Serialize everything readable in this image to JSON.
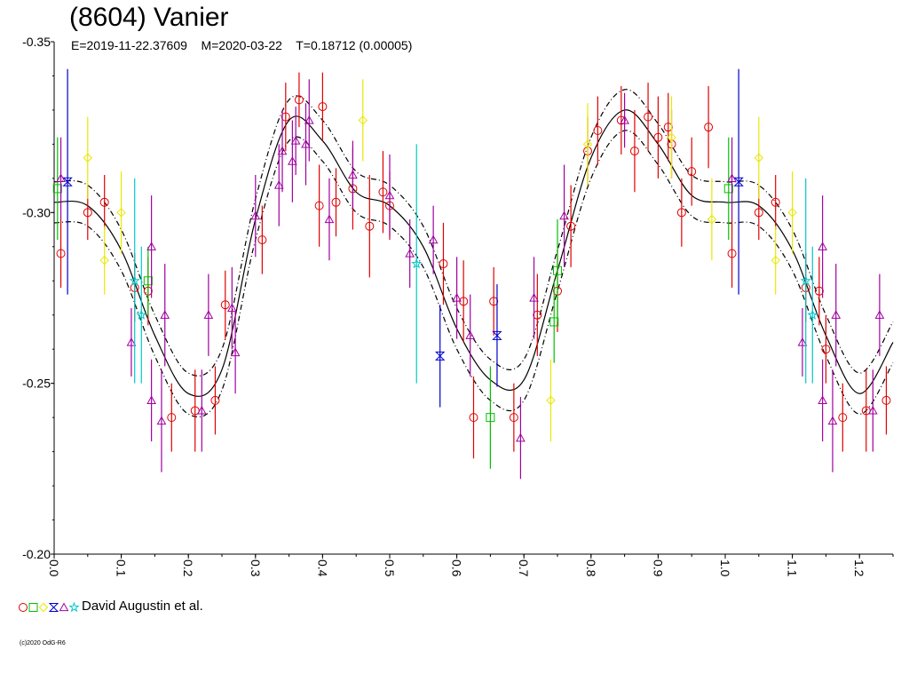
{
  "header": {
    "title": "(8604) Vanier",
    "subtitle": "E=2019-11-22.37609    M=2020-03-22    T=0.18712 (0.00005)"
  },
  "legend": {
    "text": "David Augustin et al.",
    "symbols": [
      {
        "shape": "circle",
        "color": "#e00000"
      },
      {
        "shape": "square",
        "color": "#00c000"
      },
      {
        "shape": "diamond",
        "color": "#e8e800"
      },
      {
        "shape": "hourglass",
        "color": "#0000cc"
      },
      {
        "shape": "triangle",
        "color": "#a000a0"
      },
      {
        "shape": "star",
        "color": "#00c8c8"
      }
    ]
  },
  "copyright": "(c)2020 OdG-R6",
  "chart_data": {
    "type": "scatter",
    "xlim": [
      0.0,
      1.25
    ],
    "ylim": [
      -0.35,
      -0.2
    ],
    "y_inverted": true,
    "x_ticks": [
      "0.0",
      "0.1",
      "0.2",
      "0.3",
      "0.4",
      "0.5",
      "0.6",
      "0.7",
      "0.8",
      "0.9",
      "1.0",
      "1.1",
      "1.2"
    ],
    "y_ticks": [
      "-0.35",
      "-0.30",
      "-0.25",
      "-0.20"
    ],
    "model_curve": {
      "phase": [
        0.0,
        0.05,
        0.1,
        0.15,
        0.2,
        0.25,
        0.3,
        0.35,
        0.4,
        0.45,
        0.5,
        0.55,
        0.6,
        0.65,
        0.7,
        0.75,
        0.8,
        0.85,
        0.9,
        0.95,
        1.0,
        1.05,
        1.1,
        1.15,
        1.2,
        1.25
      ],
      "mag": [
        -0.303,
        -0.302,
        -0.289,
        -0.264,
        -0.247,
        -0.254,
        -0.298,
        -0.327,
        -0.321,
        -0.306,
        -0.302,
        -0.29,
        -0.266,
        -0.251,
        -0.251,
        -0.283,
        -0.316,
        -0.33,
        -0.32,
        -0.305,
        -0.303,
        -0.302,
        -0.289,
        -0.264,
        -0.247,
        -0.262
      ],
      "envelope_offset": 0.006
    },
    "series": [
      {
        "symbol": "circle",
        "color": "#e00000",
        "points": [
          {
            "x": 0.01,
            "y": -0.288,
            "err": 0.01
          },
          {
            "x": 0.05,
            "y": -0.3,
            "err": 0.008
          },
          {
            "x": 0.075,
            "y": -0.303,
            "err": 0.008
          },
          {
            "x": 0.12,
            "y": -0.278,
            "err": 0.01
          },
          {
            "x": 0.14,
            "y": -0.277,
            "err": 0.01
          },
          {
            "x": 0.175,
            "y": -0.24,
            "err": 0.01
          },
          {
            "x": 0.21,
            "y": -0.242,
            "err": 0.012
          },
          {
            "x": 0.24,
            "y": -0.245,
            "err": 0.01
          },
          {
            "x": 0.255,
            "y": -0.273,
            "err": 0.01
          },
          {
            "x": 0.31,
            "y": -0.292,
            "err": 0.01
          },
          {
            "x": 0.345,
            "y": -0.328,
            "err": 0.01
          },
          {
            "x": 0.365,
            "y": -0.333,
            "err": 0.008
          },
          {
            "x": 0.395,
            "y": -0.302,
            "err": 0.012
          },
          {
            "x": 0.4,
            "y": -0.331,
            "err": 0.01
          },
          {
            "x": 0.42,
            "y": -0.303,
            "err": 0.01
          },
          {
            "x": 0.445,
            "y": -0.307,
            "err": 0.012
          },
          {
            "x": 0.47,
            "y": -0.296,
            "err": 0.015
          },
          {
            "x": 0.49,
            "y": -0.306,
            "err": 0.012
          },
          {
            "x": 0.5,
            "y": -0.302,
            "err": 0.01
          },
          {
            "x": 0.58,
            "y": -0.285,
            "err": 0.012
          },
          {
            "x": 0.61,
            "y": -0.274,
            "err": 0.012
          },
          {
            "x": 0.625,
            "y": -0.24,
            "err": 0.012
          },
          {
            "x": 0.655,
            "y": -0.274,
            "err": 0.01
          },
          {
            "x": 0.685,
            "y": -0.24,
            "err": 0.01
          },
          {
            "x": 0.72,
            "y": -0.27,
            "err": 0.012
          },
          {
            "x": 0.75,
            "y": -0.277,
            "err": 0.012
          },
          {
            "x": 0.77,
            "y": -0.296,
            "err": 0.012
          },
          {
            "x": 0.795,
            "y": -0.318,
            "err": 0.01
          },
          {
            "x": 0.81,
            "y": -0.324,
            "err": 0.01
          },
          {
            "x": 0.845,
            "y": -0.327,
            "err": 0.01
          },
          {
            "x": 0.865,
            "y": -0.318,
            "err": 0.012
          },
          {
            "x": 0.885,
            "y": -0.328,
            "err": 0.01
          },
          {
            "x": 0.9,
            "y": -0.322,
            "err": 0.012
          },
          {
            "x": 0.915,
            "y": -0.325,
            "err": 0.01
          },
          {
            "x": 0.92,
            "y": -0.32,
            "err": 0.01
          },
          {
            "x": 0.935,
            "y": -0.3,
            "err": 0.01
          },
          {
            "x": 0.95,
            "y": -0.312,
            "err": 0.01
          },
          {
            "x": 0.975,
            "y": -0.325,
            "err": 0.012
          },
          {
            "x": 1.01,
            "y": -0.288,
            "err": 0.01
          },
          {
            "x": 1.05,
            "y": -0.3,
            "err": 0.008
          },
          {
            "x": 1.075,
            "y": -0.303,
            "err": 0.008
          },
          {
            "x": 1.12,
            "y": -0.278,
            "err": 0.01
          },
          {
            "x": 1.14,
            "y": -0.277,
            "err": 0.01
          },
          {
            "x": 1.15,
            "y": -0.26,
            "err": 0.01
          },
          {
            "x": 1.175,
            "y": -0.24,
            "err": 0.01
          },
          {
            "x": 1.21,
            "y": -0.242,
            "err": 0.012
          },
          {
            "x": 1.24,
            "y": -0.245,
            "err": 0.01
          }
        ]
      },
      {
        "symbol": "square",
        "color": "#00c000",
        "points": [
          {
            "x": 0.005,
            "y": -0.307,
            "err": 0.015
          },
          {
            "x": 0.14,
            "y": -0.28,
            "err": 0.01
          },
          {
            "x": 0.65,
            "y": -0.24,
            "err": 0.015
          },
          {
            "x": 0.745,
            "y": -0.268,
            "err": 0.012
          },
          {
            "x": 0.75,
            "y": -0.283,
            "err": 0.015
          },
          {
            "x": 1.005,
            "y": -0.307,
            "err": 0.015
          }
        ]
      },
      {
        "symbol": "diamond",
        "color": "#e8e800",
        "points": [
          {
            "x": 0.05,
            "y": -0.316,
            "err": 0.012
          },
          {
            "x": 0.075,
            "y": -0.286,
            "err": 0.01
          },
          {
            "x": 0.1,
            "y": -0.3,
            "err": 0.012
          },
          {
            "x": 0.46,
            "y": -0.327,
            "err": 0.012
          },
          {
            "x": 0.74,
            "y": -0.245,
            "err": 0.012
          },
          {
            "x": 0.795,
            "y": -0.32,
            "err": 0.012
          },
          {
            "x": 0.92,
            "y": -0.322,
            "err": 0.012
          },
          {
            "x": 0.98,
            "y": -0.298,
            "err": 0.012
          },
          {
            "x": 1.05,
            "y": -0.316,
            "err": 0.012
          },
          {
            "x": 1.075,
            "y": -0.286,
            "err": 0.01
          },
          {
            "x": 1.1,
            "y": -0.3,
            "err": 0.012
          }
        ]
      },
      {
        "symbol": "hourglass",
        "color": "#0000cc",
        "points": [
          {
            "x": 0.02,
            "y": -0.309,
            "err": 0.033
          },
          {
            "x": 0.575,
            "y": -0.258,
            "err": 0.015
          },
          {
            "x": 0.66,
            "y": -0.264,
            "err": 0.015
          },
          {
            "x": 1.02,
            "y": -0.309,
            "err": 0.033
          }
        ]
      },
      {
        "symbol": "triangle",
        "color": "#a000a0",
        "points": [
          {
            "x": 0.01,
            "y": -0.31,
            "err": 0.012
          },
          {
            "x": 0.115,
            "y": -0.262,
            "err": 0.01
          },
          {
            "x": 0.145,
            "y": -0.245,
            "err": 0.012
          },
          {
            "x": 0.145,
            "y": -0.29,
            "err": 0.015
          },
          {
            "x": 0.16,
            "y": -0.239,
            "err": 0.015
          },
          {
            "x": 0.165,
            "y": -0.27,
            "err": 0.015
          },
          {
            "x": 0.22,
            "y": -0.242,
            "err": 0.012
          },
          {
            "x": 0.23,
            "y": -0.27,
            "err": 0.012
          },
          {
            "x": 0.265,
            "y": -0.272,
            "err": 0.012
          },
          {
            "x": 0.27,
            "y": -0.259,
            "err": 0.012
          },
          {
            "x": 0.3,
            "y": -0.299,
            "err": 0.012
          },
          {
            "x": 0.335,
            "y": -0.308,
            "err": 0.012
          },
          {
            "x": 0.34,
            "y": -0.318,
            "err": 0.012
          },
          {
            "x": 0.355,
            "y": -0.315,
            "err": 0.012
          },
          {
            "x": 0.36,
            "y": -0.321,
            "err": 0.01
          },
          {
            "x": 0.375,
            "y": -0.32,
            "err": 0.012
          },
          {
            "x": 0.38,
            "y": -0.327,
            "err": 0.012
          },
          {
            "x": 0.41,
            "y": -0.298,
            "err": 0.012
          },
          {
            "x": 0.445,
            "y": -0.311,
            "err": 0.01
          },
          {
            "x": 0.5,
            "y": -0.305,
            "err": 0.012
          },
          {
            "x": 0.53,
            "y": -0.288,
            "err": 0.01
          },
          {
            "x": 0.565,
            "y": -0.292,
            "err": 0.01
          },
          {
            "x": 0.6,
            "y": -0.275,
            "err": 0.012
          },
          {
            "x": 0.62,
            "y": -0.264,
            "err": 0.012
          },
          {
            "x": 0.695,
            "y": -0.234,
            "err": 0.012
          },
          {
            "x": 0.715,
            "y": -0.275,
            "err": 0.012
          },
          {
            "x": 0.76,
            "y": -0.299,
            "err": 0.015
          },
          {
            "x": 0.85,
            "y": -0.327,
            "err": 0.008
          },
          {
            "x": 1.01,
            "y": -0.31,
            "err": 0.012
          },
          {
            "x": 1.115,
            "y": -0.262,
            "err": 0.01
          },
          {
            "x": 1.145,
            "y": -0.245,
            "err": 0.012
          },
          {
            "x": 1.145,
            "y": -0.29,
            "err": 0.015
          },
          {
            "x": 1.16,
            "y": -0.239,
            "err": 0.015
          },
          {
            "x": 1.165,
            "y": -0.27,
            "err": 0.015
          },
          {
            "x": 1.22,
            "y": -0.242,
            "err": 0.012
          },
          {
            "x": 1.23,
            "y": -0.27,
            "err": 0.012
          }
        ]
      },
      {
        "symbol": "star",
        "color": "#00c8c8",
        "points": [
          {
            "x": 0.12,
            "y": -0.28,
            "err": 0.03
          },
          {
            "x": 0.13,
            "y": -0.27,
            "err": 0.02
          },
          {
            "x": 0.54,
            "y": -0.285,
            "err": 0.035
          },
          {
            "x": 1.12,
            "y": -0.28,
            "err": 0.03
          },
          {
            "x": 1.13,
            "y": -0.27,
            "err": 0.02
          }
        ]
      }
    ]
  }
}
